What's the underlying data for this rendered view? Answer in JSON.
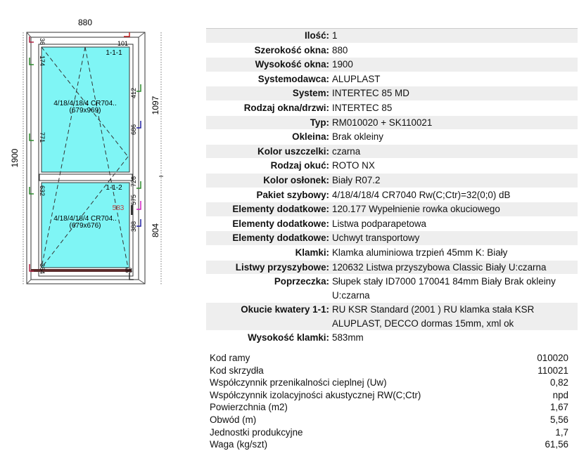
{
  "drawing": {
    "width_label": "880",
    "height_label": "1900",
    "upper_height_label": "1097",
    "lower_height_label": "804",
    "sash_upper_id": "1-1-1",
    "sash_lower_id": "1-1-2",
    "glass_upper": "4/18/4/18/4 CR704..",
    "glass_upper_size": "(679x969)",
    "glass_lower": "4/18/4/18/4 CR704..",
    "glass_lower_size": "(679x676)",
    "handle_height": "583",
    "hardware_marks": [
      "36",
      "174",
      "771",
      "632",
      "364",
      "101",
      "412",
      "686",
      "726",
      "575",
      "388",
      "58"
    ],
    "glass_color": "#7ff5f5",
    "frame_color": "#ffffff"
  },
  "spec": [
    {
      "label": "Ilość:",
      "value": "1"
    },
    {
      "label": "Szerokość okna:",
      "value": "880"
    },
    {
      "label": "Wysokość okna:",
      "value": "1900"
    },
    {
      "label": "Systemodawca:",
      "value": "ALUPLAST"
    },
    {
      "label": "System:",
      "value": "INTERTEC 85 MD"
    },
    {
      "label": "Rodzaj okna/drzwi:",
      "value": "INTERTEC 85"
    },
    {
      "label": "Typ:",
      "value": "RM010020 + SK110021"
    },
    {
      "label": "Okleina:",
      "value": "Brak okleiny"
    },
    {
      "label": "Kolor uszczelki:",
      "value": "czarna"
    },
    {
      "label": "Rodzaj okuć:",
      "value": "ROTO NX"
    },
    {
      "label": "Kolor osłonek:",
      "value": "Biały  R07.2"
    },
    {
      "label": "Pakiet szybowy:",
      "value": "4/18/4/18/4 CR7040 Rw(C;Ctr)=32(0;0) dB"
    },
    {
      "label": "Elementy dodatkowe:",
      "value": "120.177 Wypełnienie rowka okuciowego"
    },
    {
      "label": "Elementy dodatkowe:",
      "value": "Listwa podparapetowa"
    },
    {
      "label": "Elementy dodatkowe:",
      "value": "Uchwyt transportowy"
    },
    {
      "label": "Klamki:",
      "value": "Klamka aluminiowa trzpień 45mm K: Biały"
    },
    {
      "label": "Listwy przyszybowe:",
      "value": "120632 Listwa przyszybowa Classic Biały U:czarna"
    },
    {
      "label": "Poprzeczka:",
      "value": "Słupek stały ID7000 170041 84mm Biały Brak okleiny U:czarna"
    },
    {
      "label": "Okucie kwatery 1-1:",
      "value": "RU KSR  Standard (2001 ) RU klamka stała KSR ALUPLAST, DECCO dormas  15mm, xml ok"
    },
    {
      "label": "Wysokość klamki:",
      "value": "583mm"
    }
  ],
  "summary": [
    {
      "label": "Kod ramy",
      "value": "010020"
    },
    {
      "label": "Kod skrzydła",
      "value": "110021"
    },
    {
      "label": "Współczynnik przenikalności cieplnej (Uw)",
      "value": "0,82"
    },
    {
      "label": "Współczynnik izolacyjności akustycznej RW(C;Ctr)",
      "value": "npd"
    },
    {
      "label": "Powierzchnia (m2)",
      "value": "1,67"
    },
    {
      "label": "Obwód (m)",
      "value": "5,56"
    },
    {
      "label": "Jednostki produkcyjne",
      "value": "1,7"
    },
    {
      "label": "Waga (kg/szt)",
      "value": "61,56"
    }
  ]
}
